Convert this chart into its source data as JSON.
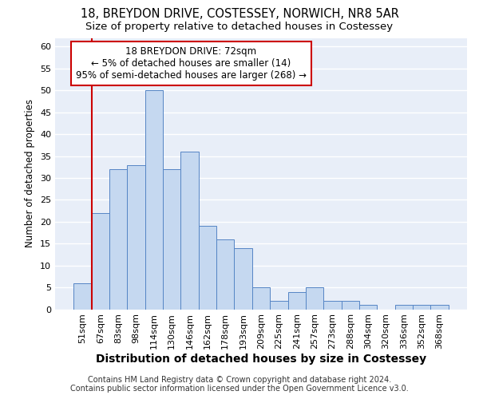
{
  "title1": "18, BREYDON DRIVE, COSTESSEY, NORWICH, NR8 5AR",
  "title2": "Size of property relative to detached houses in Costessey",
  "xlabel": "Distribution of detached houses by size in Costessey",
  "ylabel": "Number of detached properties",
  "categories": [
    "51sqm",
    "67sqm",
    "83sqm",
    "98sqm",
    "114sqm",
    "130sqm",
    "146sqm",
    "162sqm",
    "178sqm",
    "193sqm",
    "209sqm",
    "225sqm",
    "241sqm",
    "257sqm",
    "273sqm",
    "288sqm",
    "304sqm",
    "320sqm",
    "336sqm",
    "352sqm",
    "368sqm"
  ],
  "values": [
    6,
    22,
    32,
    33,
    50,
    32,
    36,
    19,
    16,
    14,
    5,
    2,
    4,
    5,
    2,
    2,
    1,
    0,
    1,
    1,
    1
  ],
  "bar_color": "#c5d8f0",
  "bar_edge_color": "#5585c5",
  "annotation_line1": "18 BREYDON DRIVE: 72sqm",
  "annotation_line2": "← 5% of detached houses are smaller (14)",
  "annotation_line3": "95% of semi-detached houses are larger (268) →",
  "redline_x": 1.0,
  "annotation_box_color": "#ffffff",
  "annotation_box_edge": "#cc0000",
  "footer1": "Contains HM Land Registry data © Crown copyright and database right 2024.",
  "footer2": "Contains public sector information licensed under the Open Government Licence v3.0.",
  "ylim": [
    0,
    62
  ],
  "yticks": [
    0,
    5,
    10,
    15,
    20,
    25,
    30,
    35,
    40,
    45,
    50,
    55,
    60
  ],
  "background_color": "#e8eef8",
  "grid_color": "#ffffff",
  "title1_fontsize": 10.5,
  "title2_fontsize": 9.5,
  "xlabel_fontsize": 10,
  "ylabel_fontsize": 8.5,
  "tick_fontsize": 8,
  "annotation_fontsize": 8.5,
  "footer_fontsize": 7
}
